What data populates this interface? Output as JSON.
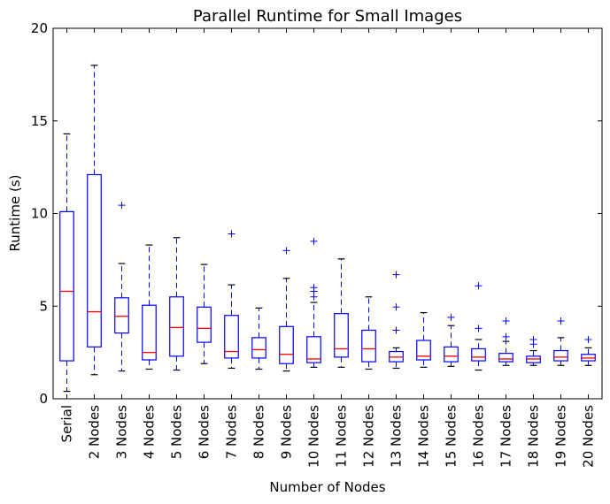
{
  "chart_data": {
    "type": "boxplot",
    "title": "Parallel Runtime for Small Images",
    "xlabel": "Number of Nodes",
    "ylabel": "Runtime (s)",
    "ylim": [
      0,
      20
    ],
    "yticks": [
      0,
      5,
      10,
      15,
      20
    ],
    "grid": false,
    "colors": {
      "box": "#0000ff",
      "median": "#ff0000",
      "whisker": "#0000ff",
      "cap": "#000000",
      "flier": "#0000ff",
      "axes": "#000000"
    },
    "boxes": [
      {
        "label": "Serial",
        "whislo": 0.4,
        "q1": 2.05,
        "med": 5.8,
        "q3": 10.1,
        "whishi": 14.3,
        "fliers": []
      },
      {
        "label": "2 Nodes",
        "whislo": 1.3,
        "q1": 2.8,
        "med": 4.7,
        "q3": 12.1,
        "whishi": 18.0,
        "fliers": []
      },
      {
        "label": "3 Nodes",
        "whislo": 1.5,
        "q1": 3.55,
        "med": 4.45,
        "q3": 5.45,
        "whishi": 7.3,
        "fliers": [
          10.45
        ]
      },
      {
        "label": "4 Nodes",
        "whislo": 1.6,
        "q1": 2.1,
        "med": 2.5,
        "q3": 5.05,
        "whishi": 8.3,
        "fliers": []
      },
      {
        "label": "5 Nodes",
        "whislo": 1.55,
        "q1": 2.3,
        "med": 3.85,
        "q3": 5.5,
        "whishi": 8.7,
        "fliers": []
      },
      {
        "label": "6 Nodes",
        "whislo": 1.9,
        "q1": 3.05,
        "med": 3.8,
        "q3": 4.95,
        "whishi": 7.25,
        "fliers": []
      },
      {
        "label": "7 Nodes",
        "whislo": 1.65,
        "q1": 2.2,
        "med": 2.55,
        "q3": 4.5,
        "whishi": 6.15,
        "fliers": [
          8.9
        ]
      },
      {
        "label": "8 Nodes",
        "whislo": 1.6,
        "q1": 2.2,
        "med": 2.65,
        "q3": 3.3,
        "whishi": 4.9,
        "fliers": []
      },
      {
        "label": "9 Nodes",
        "whislo": 1.5,
        "q1": 1.9,
        "med": 2.4,
        "q3": 3.9,
        "whishi": 6.5,
        "fliers": [
          8.0
        ]
      },
      {
        "label": "10 Nodes",
        "whislo": 1.7,
        "q1": 1.95,
        "med": 2.15,
        "q3": 3.35,
        "whishi": 5.2,
        "fliers": [
          5.5,
          5.8,
          6.0,
          8.5
        ]
      },
      {
        "label": "11 Nodes",
        "whislo": 1.7,
        "q1": 2.25,
        "med": 2.7,
        "q3": 4.6,
        "whishi": 7.55,
        "fliers": []
      },
      {
        "label": "12 Nodes",
        "whislo": 1.6,
        "q1": 2.0,
        "med": 2.7,
        "q3": 3.7,
        "whishi": 5.5,
        "fliers": []
      },
      {
        "label": "13 Nodes",
        "whislo": 1.65,
        "q1": 2.0,
        "med": 2.25,
        "q3": 2.55,
        "whishi": 2.75,
        "fliers": [
          3.7,
          4.95,
          6.7
        ]
      },
      {
        "label": "14 Nodes",
        "whislo": 1.7,
        "q1": 2.1,
        "med": 2.3,
        "q3": 3.15,
        "whishi": 4.65,
        "fliers": []
      },
      {
        "label": "15 Nodes",
        "whislo": 1.75,
        "q1": 2.0,
        "med": 2.3,
        "q3": 2.8,
        "whishi": 3.95,
        "fliers": [
          4.4
        ]
      },
      {
        "label": "16 Nodes",
        "whislo": 1.55,
        "q1": 2.05,
        "med": 2.25,
        "q3": 2.7,
        "whishi": 3.2,
        "fliers": [
          3.8,
          6.1
        ]
      },
      {
        "label": "17 Nodes",
        "whislo": 1.8,
        "q1": 2.0,
        "med": 2.15,
        "q3": 2.45,
        "whishi": 3.1,
        "fliers": [
          3.35,
          4.2
        ]
      },
      {
        "label": "18 Nodes",
        "whislo": 1.8,
        "q1": 1.95,
        "med": 2.15,
        "q3": 2.3,
        "whishi": 2.6,
        "fliers": [
          2.95,
          3.2
        ]
      },
      {
        "label": "19 Nodes",
        "whislo": 1.8,
        "q1": 2.05,
        "med": 2.25,
        "q3": 2.6,
        "whishi": 3.3,
        "fliers": [
          4.2
        ]
      },
      {
        "label": "20 Nodes",
        "whislo": 1.8,
        "q1": 2.05,
        "med": 2.2,
        "q3": 2.4,
        "whishi": 2.75,
        "fliers": [
          3.2
        ]
      }
    ]
  }
}
